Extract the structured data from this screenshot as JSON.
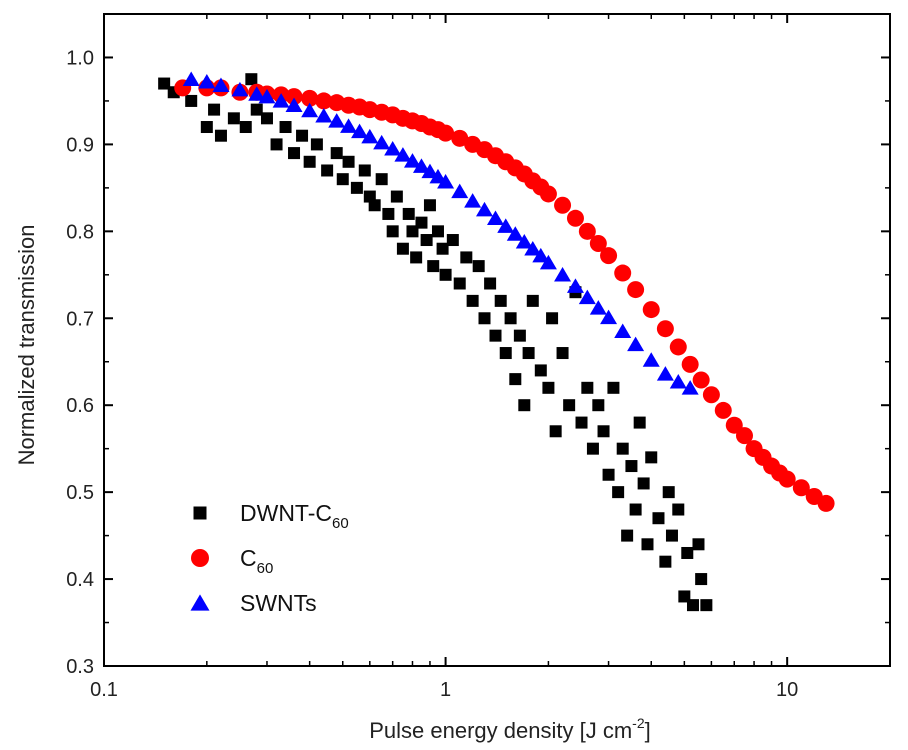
{
  "chart_data": {
    "type": "scatter",
    "xlabel": "Pulse energy density [J cm",
    "xlabel_sup": "-2",
    "xlabel_close": "]",
    "ylabel": "Normalized transmission",
    "xscale": "log",
    "xlim": [
      0.1,
      20
    ],
    "ylim": [
      0.3,
      1.05
    ],
    "xticks": [
      0.1,
      1,
      10
    ],
    "xtick_labels": [
      "0.1",
      "1",
      "10"
    ],
    "yticks": [
      0.3,
      0.4,
      0.5,
      0.6,
      0.7,
      0.8,
      0.9,
      1.0
    ],
    "ytick_labels": [
      "0.3",
      "0.4",
      "0.5",
      "0.6",
      "0.7",
      "0.8",
      "0.9",
      "1.0"
    ],
    "legend_position": "bottom-left",
    "series": [
      {
        "name": "DWNT-C",
        "name_sub": "60",
        "marker": "square",
        "color": "#000000",
        "points": [
          [
            0.15,
            0.97
          ],
          [
            0.16,
            0.96
          ],
          [
            0.17,
            0.965
          ],
          [
            0.18,
            0.95
          ],
          [
            0.2,
            0.92
          ],
          [
            0.21,
            0.94
          ],
          [
            0.22,
            0.91
          ],
          [
            0.24,
            0.93
          ],
          [
            0.26,
            0.92
          ],
          [
            0.27,
            0.975
          ],
          [
            0.28,
            0.94
          ],
          [
            0.3,
            0.93
          ],
          [
            0.32,
            0.9
          ],
          [
            0.34,
            0.92
          ],
          [
            0.36,
            0.89
          ],
          [
            0.38,
            0.91
          ],
          [
            0.4,
            0.88
          ],
          [
            0.42,
            0.9
          ],
          [
            0.45,
            0.87
          ],
          [
            0.48,
            0.89
          ],
          [
            0.5,
            0.86
          ],
          [
            0.52,
            0.88
          ],
          [
            0.55,
            0.85
          ],
          [
            0.58,
            0.87
          ],
          [
            0.6,
            0.84
          ],
          [
            0.62,
            0.83
          ],
          [
            0.65,
            0.86
          ],
          [
            0.68,
            0.82
          ],
          [
            0.7,
            0.8
          ],
          [
            0.72,
            0.84
          ],
          [
            0.75,
            0.78
          ],
          [
            0.78,
            0.82
          ],
          [
            0.8,
            0.8
          ],
          [
            0.82,
            0.77
          ],
          [
            0.85,
            0.81
          ],
          [
            0.88,
            0.79
          ],
          [
            0.9,
            0.83
          ],
          [
            0.92,
            0.76
          ],
          [
            0.95,
            0.8
          ],
          [
            0.98,
            0.78
          ],
          [
            1.0,
            0.75
          ],
          [
            1.05,
            0.79
          ],
          [
            1.1,
            0.74
          ],
          [
            1.15,
            0.77
          ],
          [
            1.2,
            0.72
          ],
          [
            1.25,
            0.76
          ],
          [
            1.3,
            0.7
          ],
          [
            1.35,
            0.74
          ],
          [
            1.4,
            0.68
          ],
          [
            1.45,
            0.72
          ],
          [
            1.5,
            0.66
          ],
          [
            1.55,
            0.7
          ],
          [
            1.6,
            0.63
          ],
          [
            1.65,
            0.68
          ],
          [
            1.7,
            0.6
          ],
          [
            1.75,
            0.66
          ],
          [
            1.8,
            0.72
          ],
          [
            1.9,
            0.64
          ],
          [
            2.0,
            0.62
          ],
          [
            2.05,
            0.7
          ],
          [
            2.1,
            0.57
          ],
          [
            2.2,
            0.66
          ],
          [
            2.3,
            0.6
          ],
          [
            2.4,
            0.73
          ],
          [
            2.5,
            0.58
          ],
          [
            2.6,
            0.62
          ],
          [
            2.7,
            0.55
          ],
          [
            2.8,
            0.6
          ],
          [
            2.9,
            0.57
          ],
          [
            3.0,
            0.52
          ],
          [
            3.1,
            0.62
          ],
          [
            3.2,
            0.5
          ],
          [
            3.3,
            0.55
          ],
          [
            3.4,
            0.45
          ],
          [
            3.5,
            0.53
          ],
          [
            3.6,
            0.48
          ],
          [
            3.7,
            0.58
          ],
          [
            3.8,
            0.51
          ],
          [
            3.9,
            0.44
          ],
          [
            4.0,
            0.54
          ],
          [
            4.2,
            0.47
          ],
          [
            4.4,
            0.42
          ],
          [
            4.5,
            0.5
          ],
          [
            4.6,
            0.45
          ],
          [
            4.8,
            0.48
          ],
          [
            5.0,
            0.38
          ],
          [
            5.1,
            0.43
          ],
          [
            5.3,
            0.37
          ],
          [
            5.5,
            0.44
          ],
          [
            5.6,
            0.4
          ],
          [
            5.8,
            0.37
          ]
        ]
      },
      {
        "name": "C",
        "name_sub": "60",
        "marker": "circle",
        "color": "#ff0000",
        "points": [
          [
            0.17,
            0.965
          ],
          [
            0.2,
            0.965
          ],
          [
            0.22,
            0.965
          ],
          [
            0.25,
            0.96
          ],
          [
            0.28,
            0.96
          ],
          [
            0.3,
            0.958
          ],
          [
            0.33,
            0.957
          ],
          [
            0.36,
            0.955
          ],
          [
            0.4,
            0.953
          ],
          [
            0.44,
            0.95
          ],
          [
            0.48,
            0.948
          ],
          [
            0.52,
            0.945
          ],
          [
            0.56,
            0.943
          ],
          [
            0.6,
            0.94
          ],
          [
            0.65,
            0.937
          ],
          [
            0.7,
            0.934
          ],
          [
            0.75,
            0.93
          ],
          [
            0.8,
            0.927
          ],
          [
            0.85,
            0.924
          ],
          [
            0.9,
            0.92
          ],
          [
            0.95,
            0.917
          ],
          [
            1.0,
            0.913
          ],
          [
            1.1,
            0.907
          ],
          [
            1.2,
            0.9
          ],
          [
            1.3,
            0.894
          ],
          [
            1.4,
            0.887
          ],
          [
            1.5,
            0.88
          ],
          [
            1.6,
            0.873
          ],
          [
            1.7,
            0.866
          ],
          [
            1.8,
            0.858
          ],
          [
            1.9,
            0.851
          ],
          [
            2.0,
            0.843
          ],
          [
            2.2,
            0.83
          ],
          [
            2.4,
            0.815
          ],
          [
            2.6,
            0.8
          ],
          [
            2.8,
            0.786
          ],
          [
            3.0,
            0.772
          ],
          [
            3.3,
            0.752
          ],
          [
            3.6,
            0.733
          ],
          [
            4.0,
            0.71
          ],
          [
            4.4,
            0.688
          ],
          [
            4.8,
            0.667
          ],
          [
            5.2,
            0.647
          ],
          [
            5.6,
            0.629
          ],
          [
            6.0,
            0.612
          ],
          [
            6.5,
            0.594
          ],
          [
            7.0,
            0.577
          ],
          [
            7.5,
            0.565
          ],
          [
            8.0,
            0.55
          ],
          [
            8.5,
            0.54
          ],
          [
            9.0,
            0.53
          ],
          [
            9.5,
            0.522
          ],
          [
            10.0,
            0.515
          ],
          [
            11.0,
            0.505
          ],
          [
            12.0,
            0.495
          ],
          [
            13.0,
            0.487
          ]
        ]
      },
      {
        "name": "SWNTs",
        "name_sub": "",
        "marker": "triangle",
        "color": "#0000ff",
        "points": [
          [
            0.18,
            0.975
          ],
          [
            0.2,
            0.972
          ],
          [
            0.22,
            0.968
          ],
          [
            0.25,
            0.963
          ],
          [
            0.28,
            0.958
          ],
          [
            0.3,
            0.955
          ],
          [
            0.33,
            0.95
          ],
          [
            0.36,
            0.945
          ],
          [
            0.4,
            0.939
          ],
          [
            0.44,
            0.933
          ],
          [
            0.48,
            0.927
          ],
          [
            0.52,
            0.921
          ],
          [
            0.56,
            0.915
          ],
          [
            0.6,
            0.909
          ],
          [
            0.65,
            0.902
          ],
          [
            0.7,
            0.895
          ],
          [
            0.75,
            0.888
          ],
          [
            0.8,
            0.881
          ],
          [
            0.85,
            0.875
          ],
          [
            0.9,
            0.869
          ],
          [
            0.95,
            0.863
          ],
          [
            1.0,
            0.857
          ],
          [
            1.1,
            0.846
          ],
          [
            1.2,
            0.835
          ],
          [
            1.3,
            0.825
          ],
          [
            1.4,
            0.815
          ],
          [
            1.5,
            0.806
          ],
          [
            1.6,
            0.797
          ],
          [
            1.7,
            0.788
          ],
          [
            1.8,
            0.78
          ],
          [
            1.9,
            0.772
          ],
          [
            2.0,
            0.764
          ],
          [
            2.2,
            0.75
          ],
          [
            2.4,
            0.737
          ],
          [
            2.6,
            0.724
          ],
          [
            2.8,
            0.712
          ],
          [
            3.0,
            0.701
          ],
          [
            3.3,
            0.685
          ],
          [
            3.6,
            0.67
          ],
          [
            4.0,
            0.652
          ],
          [
            4.4,
            0.636
          ],
          [
            4.8,
            0.627
          ],
          [
            5.2,
            0.62
          ]
        ]
      }
    ]
  }
}
